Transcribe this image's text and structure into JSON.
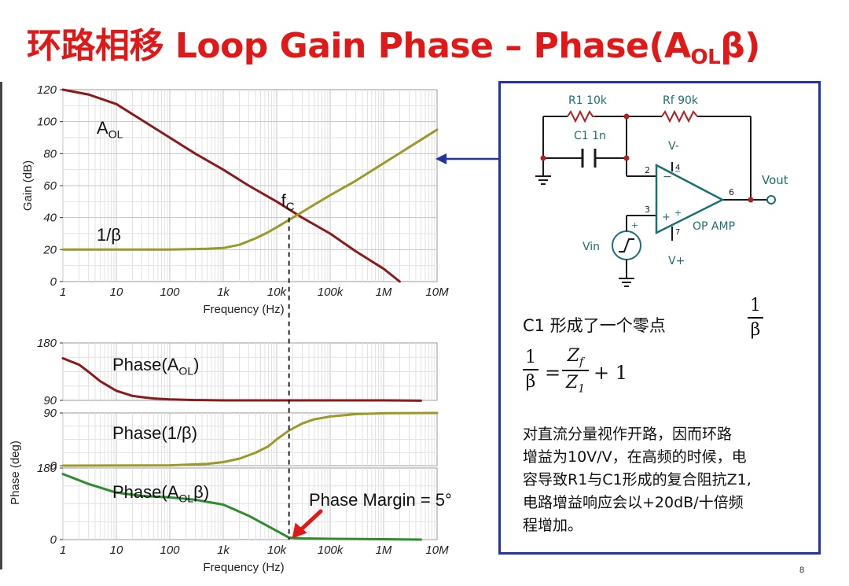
{
  "title": {
    "main": "环路相移 Loop Gain Phase – Phase(A",
    "sub": "OL",
    "end": "β)"
  },
  "colors": {
    "title": "#e01818",
    "aol": "#8b1a1a",
    "beta": "#9a9a28",
    "loop": "#2e8b2e",
    "arrow_blue": "#2233aa",
    "arrow_red": "#e01818",
    "schematic": "#1a7070"
  },
  "chart_data": [
    {
      "type": "line",
      "id": "gain",
      "xscale": "log",
      "xlim": [
        1,
        10000000
      ],
      "ylim": [
        0,
        120
      ],
      "xticks": [
        "1",
        "10",
        "100",
        "1k",
        "10k",
        "100k",
        "1M",
        "10M"
      ],
      "yticks": [
        "0",
        "20",
        "40",
        "60",
        "80",
        "100",
        "120"
      ],
      "xlabel": "Frequency (Hz)",
      "ylabel": "Gain (dB)",
      "grid": true,
      "series": [
        {
          "name": "A",
          "name_sub": "OL",
          "color": "#8b1a1a",
          "x": [
            1,
            3,
            10,
            30,
            100,
            300,
            1000,
            3000,
            10000,
            30000,
            100000,
            300000,
            1000000,
            2000000
          ],
          "y": [
            120,
            117,
            111,
            101,
            90,
            80,
            70,
            60,
            50,
            40,
            30,
            19,
            8,
            0
          ]
        },
        {
          "name": "1/β",
          "color": "#9a9a28",
          "x": [
            1,
            10,
            100,
            500,
            1000,
            2000,
            4000,
            7000,
            10000,
            20000,
            50000,
            100000,
            300000,
            1000000,
            3000000,
            10000000
          ],
          "y": [
            20,
            20,
            20,
            20.5,
            21,
            23,
            27,
            31,
            34,
            40,
            48,
            54,
            63,
            74,
            84,
            95
          ]
        }
      ],
      "annotations": [
        {
          "text": "f",
          "sub": "C",
          "x": 17000,
          "y": 40
        }
      ],
      "crossover_x": 17000
    },
    {
      "type": "line",
      "id": "phase-aol",
      "xscale": "log",
      "xlim": [
        1,
        10000000
      ],
      "ylim": [
        90,
        180
      ],
      "yticks": [
        "90",
        "180"
      ],
      "grid": true,
      "series": [
        {
          "name": "Phase(A",
          "name_sub": "OL",
          "name_end": ")",
          "color": "#8b1a1a",
          "x": [
            1,
            2,
            3,
            5,
            10,
            20,
            30,
            50,
            100,
            300,
            1000,
            10000,
            100000,
            1000000,
            5000000
          ],
          "y": [
            156,
            146,
            135,
            120,
            105,
            97,
            95,
            93,
            91.5,
            90.5,
            90,
            90,
            90,
            90,
            89.5
          ]
        }
      ]
    },
    {
      "type": "line",
      "id": "phase-beta",
      "xscale": "log",
      "xlim": [
        1,
        10000000
      ],
      "ylim": [
        0,
        90
      ],
      "yticks": [
        "0",
        "90"
      ],
      "ylabel": "Phase (deg)",
      "grid": true,
      "series": [
        {
          "name": "Phase(1/β)",
          "color": "#9a9a28",
          "x": [
            1,
            100,
            500,
            1000,
            2000,
            4000,
            7000,
            10000,
            17000,
            30000,
            50000,
            100000,
            300000,
            1000000,
            10000000
          ],
          "y": [
            0,
            0.5,
            3,
            6,
            12,
            22,
            33,
            45,
            60,
            72,
            79,
            84,
            88,
            89.5,
            90
          ]
        }
      ]
    },
    {
      "type": "line",
      "id": "phase-loop",
      "xscale": "log",
      "xlim": [
        1,
        10000000
      ],
      "ylim": [
        0,
        180
      ],
      "yticks": [
        "0",
        "180"
      ],
      "xticks": [
        "1",
        "10",
        "100",
        "1k",
        "10k",
        "100k",
        "1M",
        "10M"
      ],
      "xlabel": "Frequency (Hz)",
      "grid": true,
      "series": [
        {
          "name": "Phase(A",
          "name_sub": "OL",
          "name_end": "β)",
          "color": "#2e8b2e",
          "x": [
            1,
            3,
            10,
            30,
            100,
            300,
            1000,
            3000,
            10000,
            17000,
            30000,
            100000,
            1000000,
            5000000
          ],
          "y": [
            165,
            140,
            118,
            110,
            106,
            100,
            88,
            60,
            22,
            5,
            3,
            2,
            1,
            0
          ]
        }
      ],
      "annotations": [
        {
          "text": "Phase Margin = 5°"
        }
      ]
    }
  ],
  "schematic": {
    "r1": "R1 10k",
    "rf": "Rf 90k",
    "c1": "C1 1n",
    "vminus": "V-",
    "vplus": "V+",
    "vout": "Vout",
    "vin": "Vin",
    "opamp": "OP AMP",
    "pin2": "2",
    "pin3": "3",
    "pin4": "4",
    "pin6": "6",
    "pin7": "7"
  },
  "panel": {
    "zero_text": "C1 形成了一个零点",
    "one": "1",
    "beta": "β",
    "zf": "Z",
    "zf_sub": "f",
    "z1": "Z",
    "z1_sub": "1",
    "equals": "=",
    "plus_one": "+ 1",
    "desc_lines": [
      "对直流分量视作开路，因而环路",
      "增益为10V/V，在高频的时候，电",
      "容导致R1与C1形成的复合阻抗Z1,",
      "电路增益响应会以+20dB/十倍频",
      "程增加。"
    ]
  },
  "page_number": "8"
}
